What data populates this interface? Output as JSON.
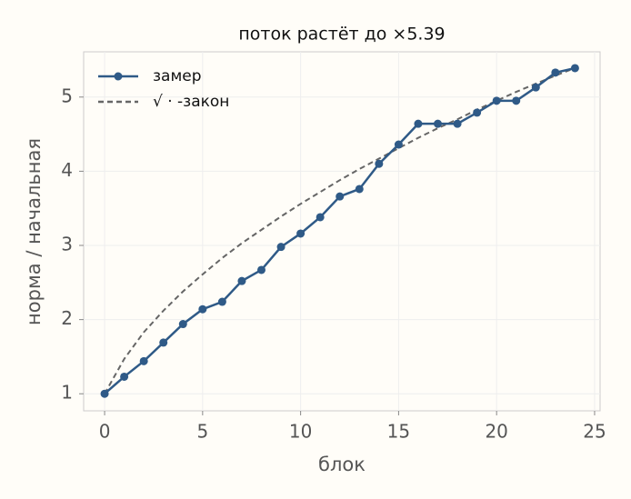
{
  "chart_data": {
    "type": "line",
    "title": "поток растёт до ×5.39",
    "x_label": "блок",
    "y_label": "норма / начальная",
    "x": [
      0,
      1,
      2,
      3,
      4,
      5,
      6,
      7,
      8,
      9,
      10,
      11,
      12,
      13,
      14,
      15,
      16,
      17,
      18,
      19,
      20,
      21,
      22,
      23,
      24
    ],
    "series": [
      {
        "name": "замер",
        "color": "#2f5a87",
        "style": "solid",
        "markers": true,
        "values": [
          1.0,
          1.23,
          1.44,
          1.69,
          1.94,
          2.14,
          2.24,
          2.52,
          2.67,
          2.98,
          3.16,
          3.38,
          3.66,
          3.76,
          4.1,
          4.36,
          4.64,
          4.64,
          4.64,
          4.79,
          4.95,
          4.95,
          5.13,
          5.33,
          5.39
        ]
      },
      {
        "name": "√ · -закон",
        "color": "#666666",
        "style": "dashed",
        "markers": false,
        "values": [
          1.0,
          1.47,
          1.83,
          2.12,
          2.38,
          2.61,
          2.83,
          3.03,
          3.21,
          3.39,
          3.56,
          3.72,
          3.88,
          4.03,
          4.17,
          4.31,
          4.45,
          4.58,
          4.7,
          4.83,
          4.95,
          5.07,
          5.18,
          5.29,
          5.39
        ]
      }
    ],
    "xlim": [
      -1.07,
      25.28
    ],
    "xticks": [
      0,
      5,
      10,
      15,
      20,
      25
    ],
    "ylim": [
      0.77,
      5.61
    ],
    "yticks": [
      1,
      2,
      3,
      4,
      5
    ],
    "grid": true,
    "legend": "upper left"
  }
}
